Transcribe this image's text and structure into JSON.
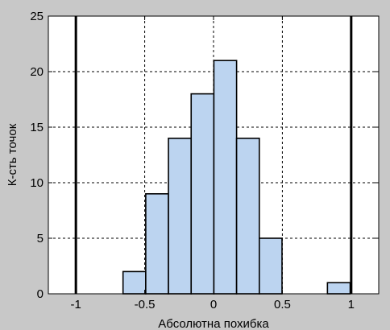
{
  "chart_data": {
    "type": "bar",
    "xlabel": "Абсолютна похибка",
    "ylabel": "К-сть точок",
    "xlim": [
      -1.2,
      1.2
    ],
    "ylim": [
      0,
      25
    ],
    "grid": true,
    "bin_width": 0.165,
    "bins": [
      {
        "center": -0.575,
        "value": 2
      },
      {
        "center": -0.41,
        "value": 9
      },
      {
        "center": -0.245,
        "value": 14
      },
      {
        "center": -0.08,
        "value": 18
      },
      {
        "center": 0.085,
        "value": 21
      },
      {
        "center": 0.25,
        "value": 14
      },
      {
        "center": 0.415,
        "value": 5
      },
      {
        "center": 0.58,
        "value": 0
      },
      {
        "center": 0.745,
        "value": 0
      },
      {
        "center": 0.91,
        "value": 1
      }
    ],
    "x_ticks": [
      -1,
      -0.5,
      0,
      0.5,
      1
    ],
    "x_tick_labels": [
      "-1",
      "-0.5",
      "0",
      "0.5",
      "1"
    ],
    "y_ticks": [
      0,
      5,
      10,
      15,
      20,
      25
    ],
    "y_tick_labels": [
      "0",
      "5",
      "10",
      "15",
      "20",
      "25"
    ],
    "vertical_lines": [
      -1,
      1
    ],
    "colors": {
      "bar_fill": "#bcd4f0",
      "bar_stroke": "#000000",
      "plot_bg": "#ffffff",
      "figure_bg": "#c8c8c8",
      "grid": "#000000",
      "vline": "#000000"
    }
  }
}
